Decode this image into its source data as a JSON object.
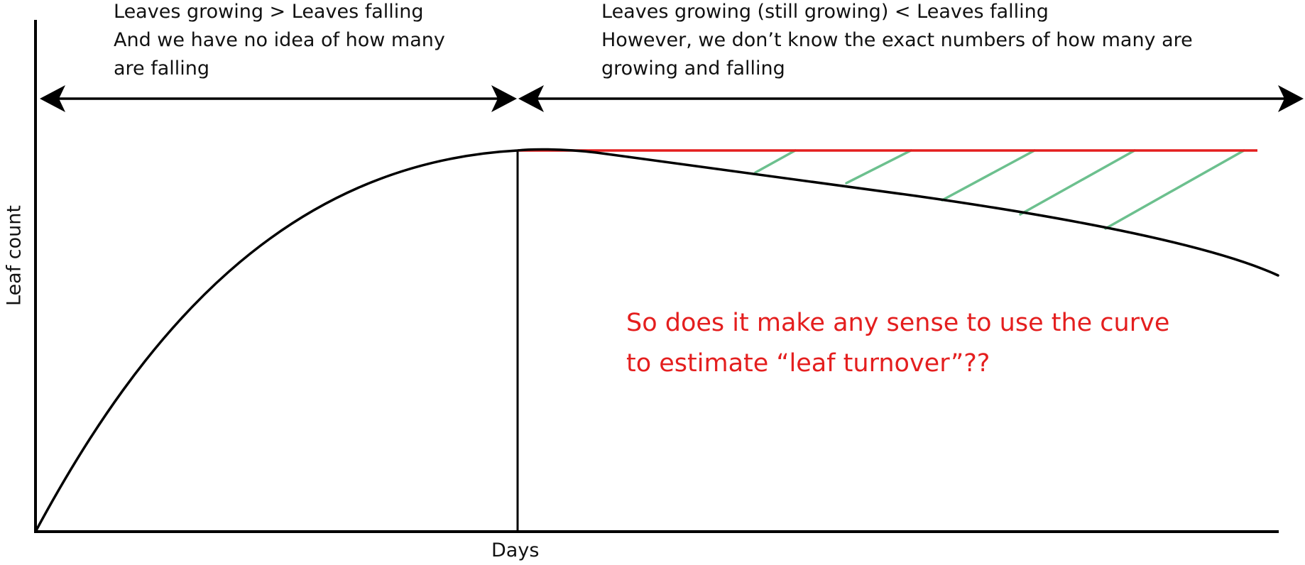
{
  "annotations": {
    "left_phase": [
      "Leaves growing > Leaves falling",
      "And we have no idea of how many",
      "are falling"
    ],
    "right_phase": [
      "Leaves growing (still growing) < Leaves falling",
      "However, we don’t know the exact numbers of how many are",
      "growing and falling"
    ],
    "question": [
      "So does it make any sense to use the curve",
      "to estimate “leaf turnover”??"
    ]
  },
  "axes": {
    "x_label": "Days",
    "y_label": "Leaf count"
  },
  "colors": {
    "axis": "#000000",
    "curve": "#000000",
    "peak_line": "#e41e1e",
    "hatch": "#6cc08e",
    "question_text": "#e41e1e"
  }
}
